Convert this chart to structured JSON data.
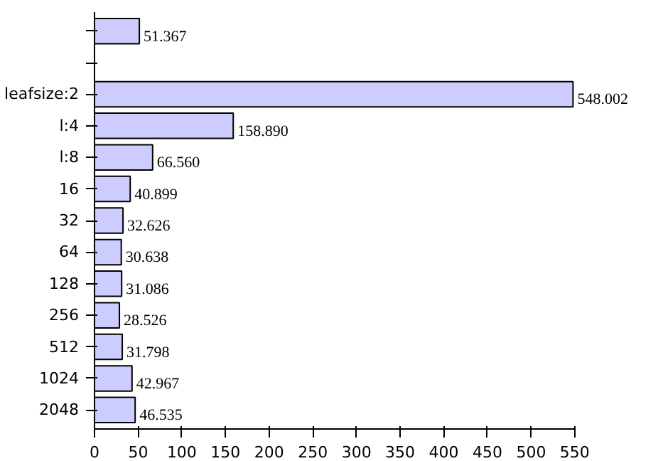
{
  "chart_data": {
    "type": "bar",
    "orientation": "horizontal",
    "categories": [
      null,
      null,
      "leafsize:2",
      "l:4",
      "l:8",
      "16",
      "32",
      "64",
      "128",
      "256",
      "512",
      "1024",
      "2048"
    ],
    "values": [
      51.367,
      null,
      548.002,
      158.89,
      66.56,
      40.899,
      32.626,
      30.638,
      31.086,
      28.526,
      31.798,
      42.967,
      46.535
    ],
    "value_labels": [
      "51.367",
      null,
      "548.002",
      "158.890",
      "66.560",
      "40.899",
      "32.626",
      "30.638",
      "31.086",
      "28.526",
      "31.798",
      "42.967",
      "46.535"
    ],
    "color": "#ccccff",
    "xlim": [
      0,
      550
    ],
    "xticks": [
      0,
      50,
      100,
      150,
      200,
      250,
      300,
      350,
      400,
      450,
      500,
      550
    ],
    "grid": false
  }
}
